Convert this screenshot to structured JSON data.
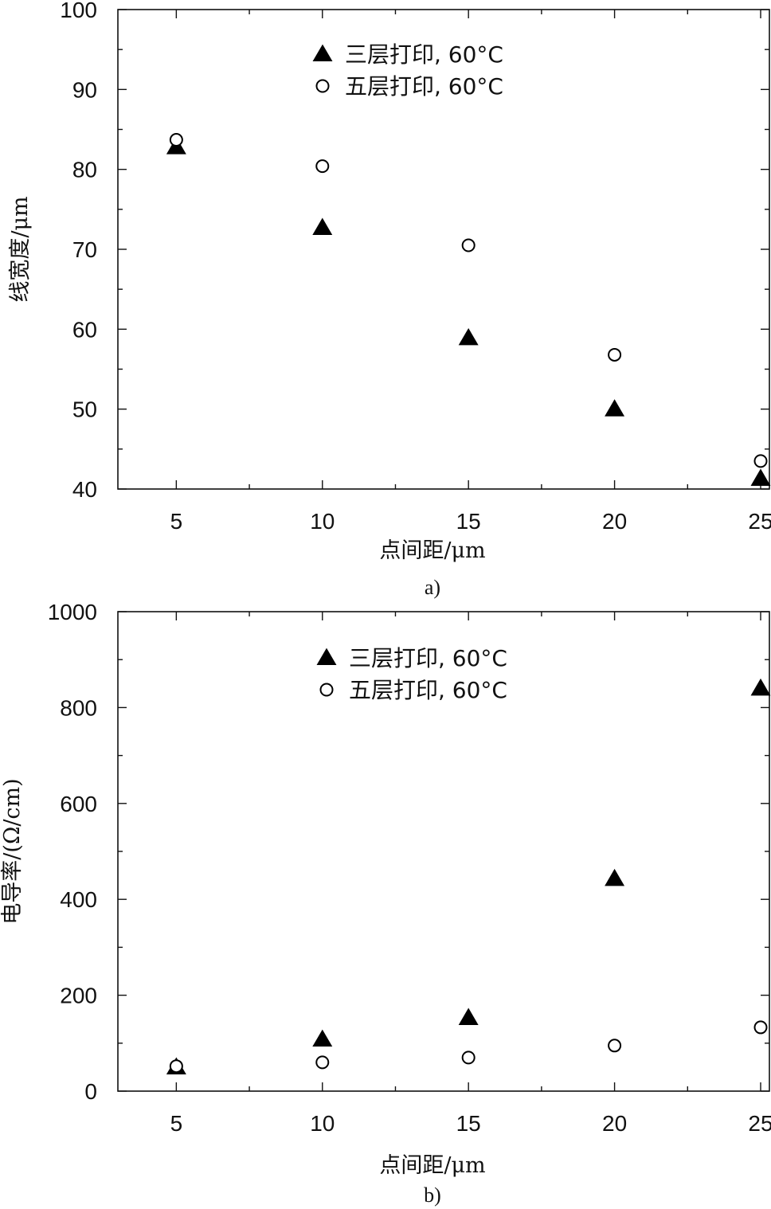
{
  "chart_data": [
    {
      "type": "scatter",
      "caption": "a)",
      "xlabel": "点间距/μm",
      "ylabel": "线宽度/μm",
      "xlim": [
        3,
        25.3
      ],
      "ylim": [
        40,
        100
      ],
      "xticks": [
        5,
        10,
        15,
        20,
        25
      ],
      "yticks": [
        40,
        50,
        60,
        70,
        80,
        90,
        100
      ],
      "legend_position": "top-center",
      "series": [
        {
          "name": "三层打印, 60°C",
          "marker": "filled-triangle",
          "x": [
            5,
            10,
            15,
            20,
            25
          ],
          "y": [
            82.8,
            72.7,
            58.9,
            50.0,
            41.3
          ]
        },
        {
          "name": "五层打印, 60°C",
          "marker": "open-circle",
          "x": [
            5,
            10,
            15,
            20,
            25
          ],
          "y": [
            83.7,
            80.4,
            70.5,
            56.8,
            43.5
          ]
        }
      ]
    },
    {
      "type": "scatter",
      "caption": "b)",
      "xlabel": "点间距/μm",
      "ylabel": "电导率/(Ω/cm)",
      "xlim": [
        3,
        25.3
      ],
      "ylim": [
        0,
        1000
      ],
      "xticks": [
        5,
        10,
        15,
        20,
        25
      ],
      "yticks": [
        0,
        200,
        400,
        600,
        800,
        1000
      ],
      "legend_position": "top-center",
      "series": [
        {
          "name": "三层打印, 60°C",
          "marker": "filled-triangle",
          "x": [
            5,
            10,
            15,
            20,
            25
          ],
          "y": [
            50,
            108,
            153,
            443,
            840
          ]
        },
        {
          "name": "五层打印, 60°C",
          "marker": "open-circle",
          "x": [
            5,
            10,
            15,
            20,
            25
          ],
          "y": [
            52,
            60,
            70,
            95,
            133
          ]
        }
      ]
    }
  ]
}
